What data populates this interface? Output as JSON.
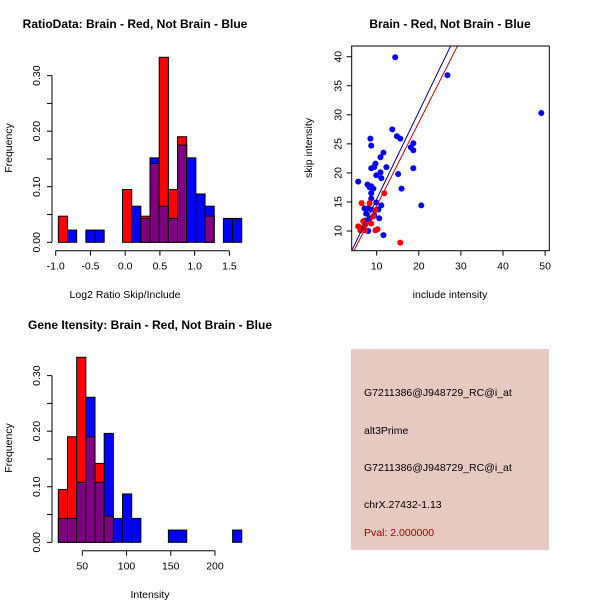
{
  "colors": {
    "red": "#ff0000",
    "blue": "#0000ff",
    "overlap": "#7f007f",
    "panel_bg": "#e6c9c1",
    "pval_text": "#990000",
    "red_line": "#cc0000",
    "blue_line": "#00008b"
  },
  "chart_data": [
    {
      "type": "bar",
      "title": "RatioData: Brain - Red, Not Brain - Blue",
      "xlabel": "Log2 Ratio Skip/Include",
      "ylabel": "Frequency",
      "xlim": [
        -1.0,
        1.7
      ],
      "ylim": [
        0,
        0.33
      ],
      "xticks": [
        "-1.0",
        "-0.5",
        "0.0",
        "0.5",
        "1.0",
        "1.5"
      ],
      "yticks": [
        "0.00",
        "0.10",
        "0.20",
        "0.30"
      ],
      "bin_start": -0.962,
      "bin_width": 0.132,
      "series": [
        {
          "name": "Brain",
          "color": "red",
          "values": [
            0.047,
            0,
            0,
            0,
            0,
            0,
            0,
            0.095,
            0,
            0.047,
            0.142,
            0.333,
            0.095,
            0.19,
            0,
            0,
            0.047,
            0,
            0,
            0
          ]
        },
        {
          "name": "Not Brain",
          "color": "blue",
          "values": [
            0,
            0.022,
            0,
            0.022,
            0.022,
            0,
            0,
            0,
            0.065,
            0.043,
            0.152,
            0.065,
            0.043,
            0.175,
            0.152,
            0.087,
            0.065,
            0,
            0.043,
            0.043
          ]
        }
      ]
    },
    {
      "type": "scatter",
      "title": "Brain - Red, Not Brain - Blue",
      "xlabel": "include intensity",
      "ylabel": "skip intensity",
      "xlim": [
        4.06,
        51
      ],
      "ylim": [
        6.6,
        41.8
      ],
      "xticks": [
        "10",
        "20",
        "30",
        "40",
        "50"
      ],
      "yticks": [
        "10",
        "15",
        "20",
        "25",
        "30",
        "35",
        "40"
      ],
      "series": [
        {
          "name": "Not Brain",
          "color": "blue",
          "fit": {
            "intercept": 0.51,
            "slope": 1.5
          },
          "points": [
            [
              14.4,
              39.9
            ],
            [
              26.8,
              36.8
            ],
            [
              49.1,
              30.3
            ],
            [
              13.7,
              27.5
            ],
            [
              14.8,
              26.3
            ],
            [
              15.6,
              25.9
            ],
            [
              8.5,
              25.9
            ],
            [
              8.7,
              24.7
            ],
            [
              18.7,
              25.1
            ],
            [
              18.1,
              24.4
            ],
            [
              18.7,
              23.9
            ],
            [
              11.6,
              23.5
            ],
            [
              10.9,
              22.7
            ],
            [
              9.7,
              21.6
            ],
            [
              12.3,
              21.0
            ],
            [
              9.4,
              21.0
            ],
            [
              8.7,
              20.8
            ],
            [
              18.7,
              20.8
            ],
            [
              10.9,
              20.1
            ],
            [
              9.9,
              19.6
            ],
            [
              15.1,
              19.8
            ],
            [
              11.1,
              19.1
            ],
            [
              5.6,
              18.5
            ],
            [
              15.9,
              17.3
            ],
            [
              7.8,
              18.0
            ],
            [
              8.3,
              17.5
            ],
            [
              8.7,
              17.7
            ],
            [
              9.2,
              17.3
            ],
            [
              8.7,
              16.5
            ],
            [
              8.7,
              15.6
            ],
            [
              9.9,
              14.9
            ],
            [
              11.1,
              14.4
            ],
            [
              20.6,
              14.4
            ],
            [
              7.1,
              13.9
            ],
            [
              8.0,
              13.9
            ],
            [
              10.4,
              13.7
            ],
            [
              7.5,
              13.0
            ],
            [
              8.7,
              13.7
            ],
            [
              9.4,
              12.7
            ],
            [
              10.6,
              12.2
            ],
            [
              8.3,
              12.2
            ],
            [
              6.8,
              10.5
            ],
            [
              8.0,
              10.0
            ],
            [
              11.6,
              9.3
            ],
            [
              7.3,
              11.8
            ]
          ]
        },
        {
          "name": "Brain",
          "color": "red",
          "fit": {
            "intercept": 0.0,
            "slope": 1.434
          },
          "points": [
            [
              6.4,
              14.8
            ],
            [
              8.3,
              14.8
            ],
            [
              11.8,
              16.5
            ],
            [
              5.6,
              10.8
            ],
            [
              6.4,
              10.6
            ],
            [
              6.8,
              11.7
            ],
            [
              7.3,
              11.1
            ],
            [
              8.7,
              11.3
            ],
            [
              9.7,
              10.1
            ],
            [
              10.2,
              10.3
            ],
            [
              9.2,
              12.5
            ],
            [
              9.7,
              13.6
            ],
            [
              15.6,
              8.0
            ],
            [
              6.1,
              10.1
            ],
            [
              7.3,
              10.1
            ]
          ]
        }
      ]
    },
    {
      "type": "bar",
      "title": "Gene Itensity: Brain - Red, Not Brain - Blue",
      "xlabel": "Intensity",
      "ylabel": "Frequency",
      "xlim": [
        22.9,
        240
      ],
      "ylim": [
        0,
        0.33
      ],
      "xticks": [
        "50",
        "100",
        "150",
        "200"
      ],
      "yticks": [
        "0.00",
        "0.10",
        "0.20",
        "0.30"
      ],
      "bin_start": 22.9,
      "bin_width": 10.37,
      "series": [
        {
          "name": "Brain",
          "color": "red",
          "values": [
            0.095,
            0.19,
            0.333,
            0.19,
            0.142,
            0.047,
            0,
            0,
            0,
            0,
            0,
            0,
            0,
            0,
            0,
            0,
            0,
            0,
            0,
            0
          ]
        },
        {
          "name": "Not Brain",
          "color": "blue",
          "values": [
            0.043,
            0.043,
            0.108,
            0.261,
            0.108,
            0.196,
            0.043,
            0.087,
            0.043,
            0,
            0,
            0,
            0.022,
            0.022,
            0,
            0,
            0,
            0,
            0,
            0.022
          ]
        }
      ]
    }
  ],
  "info_panel": {
    "line1": "G7211386@J948729_RC@i_at",
    "line2": "alt3Prime",
    "line3": "G7211386@J948729_RC@i_at",
    "line4": "chrX.27432-1.13",
    "pval": "Pval: 2.000000"
  }
}
